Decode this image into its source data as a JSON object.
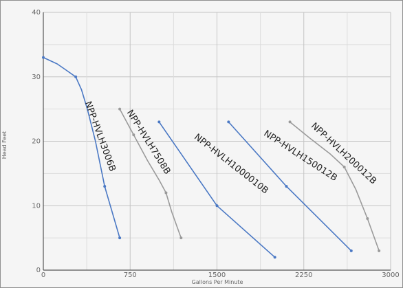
{
  "chart_data": {
    "type": "line",
    "title": "",
    "xlabel": "Gallons Per Minute",
    "ylabel": "Head Feet",
    "xlim": [
      0,
      3000
    ],
    "ylim": [
      0,
      40
    ],
    "x_ticks": [
      0,
      750,
      1500,
      2250,
      3000
    ],
    "y_ticks": [
      0,
      10,
      20,
      30,
      40
    ],
    "grid": true,
    "series": [
      {
        "name": "NPP-HVLH3006B",
        "color": "#4a78c4",
        "points": [
          [
            0,
            33
          ],
          [
            120,
            32
          ],
          [
            200,
            31
          ],
          [
            280,
            30
          ],
          [
            330,
            28
          ],
          [
            380,
            25
          ],
          [
            450,
            20
          ],
          [
            530,
            13
          ],
          [
            660,
            5
          ]
        ],
        "markers": [
          [
            0,
            33
          ],
          [
            280,
            30
          ],
          [
            530,
            13
          ],
          [
            660,
            5
          ]
        ]
      },
      {
        "name": "NPP-HVLH7508B",
        "color": "#9a9a9a",
        "points": [
          [
            660,
            25
          ],
          [
            780,
            21
          ],
          [
            900,
            17
          ],
          [
            1000,
            14
          ],
          [
            1060,
            12
          ],
          [
            1110,
            9
          ],
          [
            1190,
            5
          ]
        ],
        "markers": [
          [
            660,
            25
          ],
          [
            780,
            21
          ],
          [
            1060,
            12
          ],
          [
            1190,
            5
          ]
        ]
      },
      {
        "name": "NPP-HVLH1000010B",
        "color": "#4a78c4",
        "points": [
          [
            1000,
            23
          ],
          [
            1500,
            10
          ],
          [
            2000,
            2
          ]
        ],
        "markers": [
          [
            1000,
            23
          ],
          [
            1500,
            10
          ],
          [
            2000,
            2
          ]
        ]
      },
      {
        "name": "NPP-HVLH150012B",
        "color": "#4a78c4",
        "points": [
          [
            1600,
            23
          ],
          [
            2100,
            13
          ],
          [
            2660,
            3
          ]
        ],
        "markers": [
          [
            1600,
            23
          ],
          [
            2100,
            13
          ],
          [
            2660,
            3
          ]
        ]
      },
      {
        "name": "NPP-HVLH200012B",
        "color": "#9a9a9a",
        "points": [
          [
            2130,
            23
          ],
          [
            2300,
            20.5
          ],
          [
            2480,
            18
          ],
          [
            2600,
            16
          ],
          [
            2700,
            12.5
          ],
          [
            2800,
            8
          ],
          [
            2900,
            3
          ]
        ],
        "markers": [
          [
            2130,
            23
          ],
          [
            2600,
            16
          ],
          [
            2800,
            8
          ],
          [
            2900,
            3
          ]
        ]
      }
    ]
  }
}
